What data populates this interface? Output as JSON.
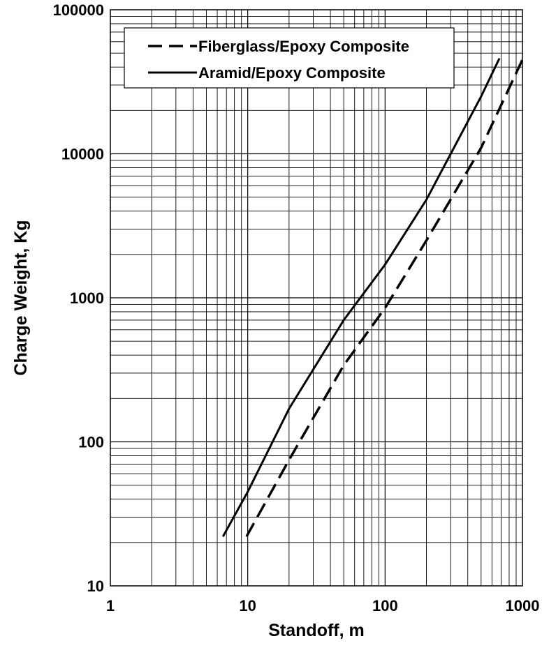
{
  "chart_data": {
    "type": "line",
    "xlabel": "Standoff, m",
    "ylabel": "Charge Weight, Kg",
    "x_scale": "log",
    "y_scale": "log",
    "xlim": [
      1,
      1000
    ],
    "ylim": [
      10,
      100000
    ],
    "x_ticks": [
      "1",
      "10",
      "100",
      "1000"
    ],
    "y_ticks": [
      "10",
      "100",
      "1000",
      "10000",
      "100000"
    ],
    "grid": true,
    "legend_position": "top-left",
    "series": [
      {
        "name": "Fiberglass/Epoxy Composite",
        "style": "dashed",
        "color": "#000000",
        "x": [
          9.8,
          20,
          50,
          100,
          200,
          500,
          1000
        ],
        "y": [
          22,
          75,
          340,
          850,
          2500,
          11000,
          45000
        ]
      },
      {
        "name": "Aramid/Epoxy Composite",
        "style": "solid",
        "color": "#000000",
        "x": [
          6.6,
          10,
          20,
          50,
          100,
          200,
          500,
          680
        ],
        "y": [
          22,
          45,
          170,
          700,
          1700,
          4800,
          25000,
          46000
        ]
      }
    ]
  }
}
